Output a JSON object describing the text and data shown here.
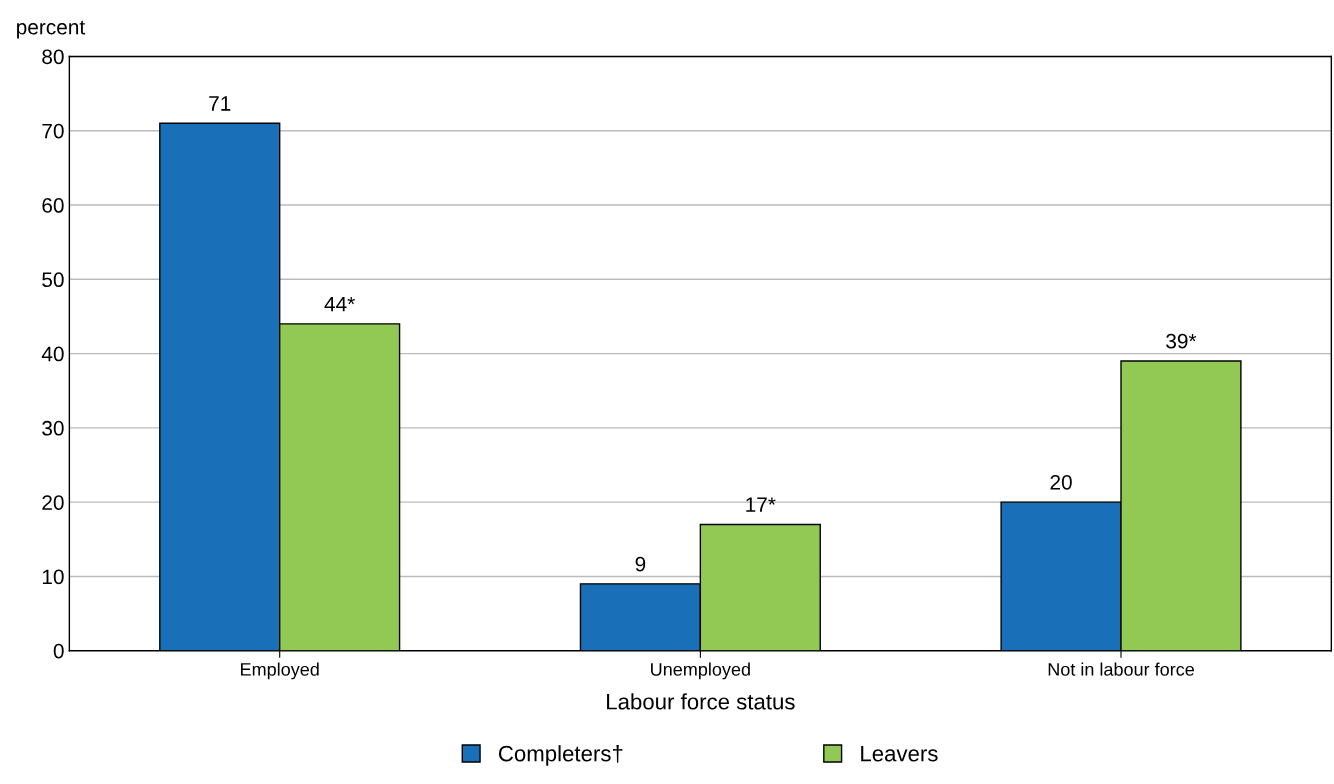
{
  "chart_data": {
    "type": "bar",
    "ylabel": "percent",
    "xlabel": "Labour force status",
    "categories": [
      "Employed",
      "Unemployed",
      "Not in labour force"
    ],
    "series": [
      {
        "name": "Completers†",
        "color": "#1a70b8",
        "values": [
          71,
          9,
          20
        ],
        "value_labels": [
          "71",
          "9",
          "20"
        ]
      },
      {
        "name": "Leavers",
        "color": "#92c954",
        "values": [
          44,
          17,
          39
        ],
        "value_labels": [
          "44*",
          "17*",
          "39*"
        ]
      }
    ],
    "ylim": [
      0,
      80
    ],
    "yticks": [
      0,
      10,
      20,
      30,
      40,
      50,
      60,
      70,
      80
    ],
    "grid": "y",
    "legend": "bottom"
  }
}
